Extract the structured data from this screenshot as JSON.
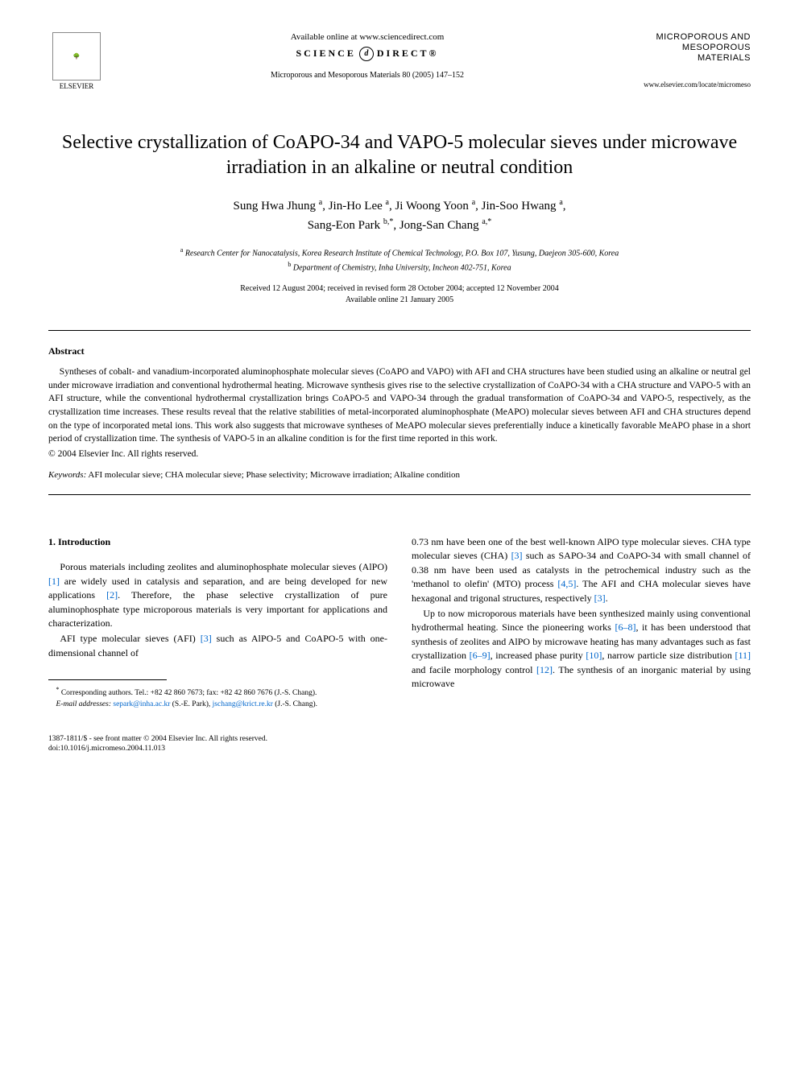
{
  "header": {
    "publisher_name": "ELSEVIER",
    "available_text": "Available online at www.sciencedirect.com",
    "sd_prefix": "SCIENCE",
    "sd_suffix": "DIRECT®",
    "sd_icon_text": "d",
    "journal_ref": "Microporous and Mesoporous Materials 80 (2005) 147–152",
    "journal_title_line1": "MICROPOROUS AND",
    "journal_title_line2": "MESOPOROUS MATERIALS",
    "locate_url": "www.elsevier.com/locate/micromeso"
  },
  "article": {
    "title": "Selective crystallization of CoAPO-34 and VAPO-5 molecular sieves under microwave irradiation in an alkaline or neutral condition",
    "authors_html": "Sung Hwa Jhung <sup>a</sup>, Jin-Ho Lee <sup>a</sup>, Ji Woong Yoon <sup>a</sup>, Jin-Soo Hwang <sup>a</sup>, Sang-Eon Park <sup>b,*</sup>, Jong-San Chang <sup>a,*</sup>",
    "affiliation_a": "Research Center for Nanocatalysis, Korea Research Institute of Chemical Technology, P.O. Box 107, Yusung, Daejeon 305-600, Korea",
    "affiliation_b": "Department of Chemistry, Inha University, Incheon 402-751, Korea",
    "dates_line1": "Received 12 August 2004; received in revised form 28 October 2004; accepted 12 November 2004",
    "dates_line2": "Available online 21 January 2005"
  },
  "abstract": {
    "heading": "Abstract",
    "text": "Syntheses of cobalt- and vanadium-incorporated aluminophosphate molecular sieves (CoAPO and VAPO) with AFI and CHA structures have been studied using an alkaline or neutral gel under microwave irradiation and conventional hydrothermal heating. Microwave synthesis gives rise to the selective crystallization of CoAPO-34 with a CHA structure and VAPO-5 with an AFI structure, while the conventional hydrothermal crystallization brings CoAPO-5 and VAPO-34 through the gradual transformation of CoAPO-34 and VAPO-5, respectively, as the crystallization time increases. These results reveal that the relative stabilities of metal-incorporated aluminophosphate (MeAPO) molecular sieves between AFI and CHA structures depend on the type of incorporated metal ions. This work also suggests that microwave syntheses of MeAPO molecular sieves preferentially induce a kinetically favorable MeAPO phase in a short period of crystallization time. The synthesis of VAPO-5 in an alkaline condition is for the first time reported in this work.",
    "copyright": "© 2004 Elsevier Inc. All rights reserved."
  },
  "keywords": {
    "label": "Keywords:",
    "text": " AFI molecular sieve; CHA molecular sieve; Phase selectivity; Microwave irradiation; Alkaline condition"
  },
  "intro": {
    "heading": "1. Introduction",
    "p1_pre": "Porous materials including zeolites and aluminophosphate molecular sieves (AlPO) ",
    "ref1": "[1]",
    "p1_mid": " are widely used in catalysis and separation, and are being developed for new applications ",
    "ref2": "[2]",
    "p1_post": ". Therefore, the phase selective crystallization of pure aluminophosphate type microporous materials is very important for applications and characterization.",
    "p2_pre": "AFI type molecular sieves (AFI) ",
    "ref3a": "[3]",
    "p2_post": " such as AlPO-5 and CoAPO-5 with one-dimensional channel of",
    "col2_p1_pre": "0.73 nm have been one of the best well-known AlPO type molecular sieves. CHA type molecular sieves (CHA) ",
    "ref3b": "[3]",
    "col2_p1_mid1": " such as SAPO-34 and CoAPO-34 with small channel of 0.38 nm have been used as catalysts in the petrochemical industry such as the 'methanol to olefin' (MTO) process ",
    "ref45": "[4,5]",
    "col2_p1_mid2": ". The AFI and CHA molecular sieves have hexagonal and trigonal structures, respectively ",
    "ref3c": "[3]",
    "col2_p1_post": ".",
    "col2_p2_pre": "Up to now microporous materials have been synthesized mainly using conventional hydrothermal heating. Since the pioneering works ",
    "ref68a": "[6–8]",
    "col2_p2_mid1": ", it has been understood that synthesis of zeolites and AlPO by microwave heating has many advantages such as fast crystallization ",
    "ref69": "[6–9]",
    "col2_p2_mid2": ", increased phase purity ",
    "ref10": "[10]",
    "col2_p2_mid3": ", narrow particle size distribution ",
    "ref11": "[11]",
    "col2_p2_mid4": " and facile morphology control ",
    "ref12": "[12]",
    "col2_p2_post": ". The synthesis of an inorganic material by using microwave"
  },
  "footnotes": {
    "corr": "Corresponding authors. Tel.: +82 42 860 7673; fax: +82 42 860 7676 (J.-S. Chang).",
    "email_label": "E-mail addresses:",
    "email1": "separk@inha.ac.kr",
    "email1_who": " (S.-E. Park), ",
    "email2": "jschang@krict.re.kr",
    "email2_who": " (J.-S. Chang)."
  },
  "footer": {
    "line1": "1387-1811/$ - see front matter © 2004 Elsevier Inc. All rights reserved.",
    "line2": "doi:10.1016/j.micromeso.2004.11.013"
  }
}
